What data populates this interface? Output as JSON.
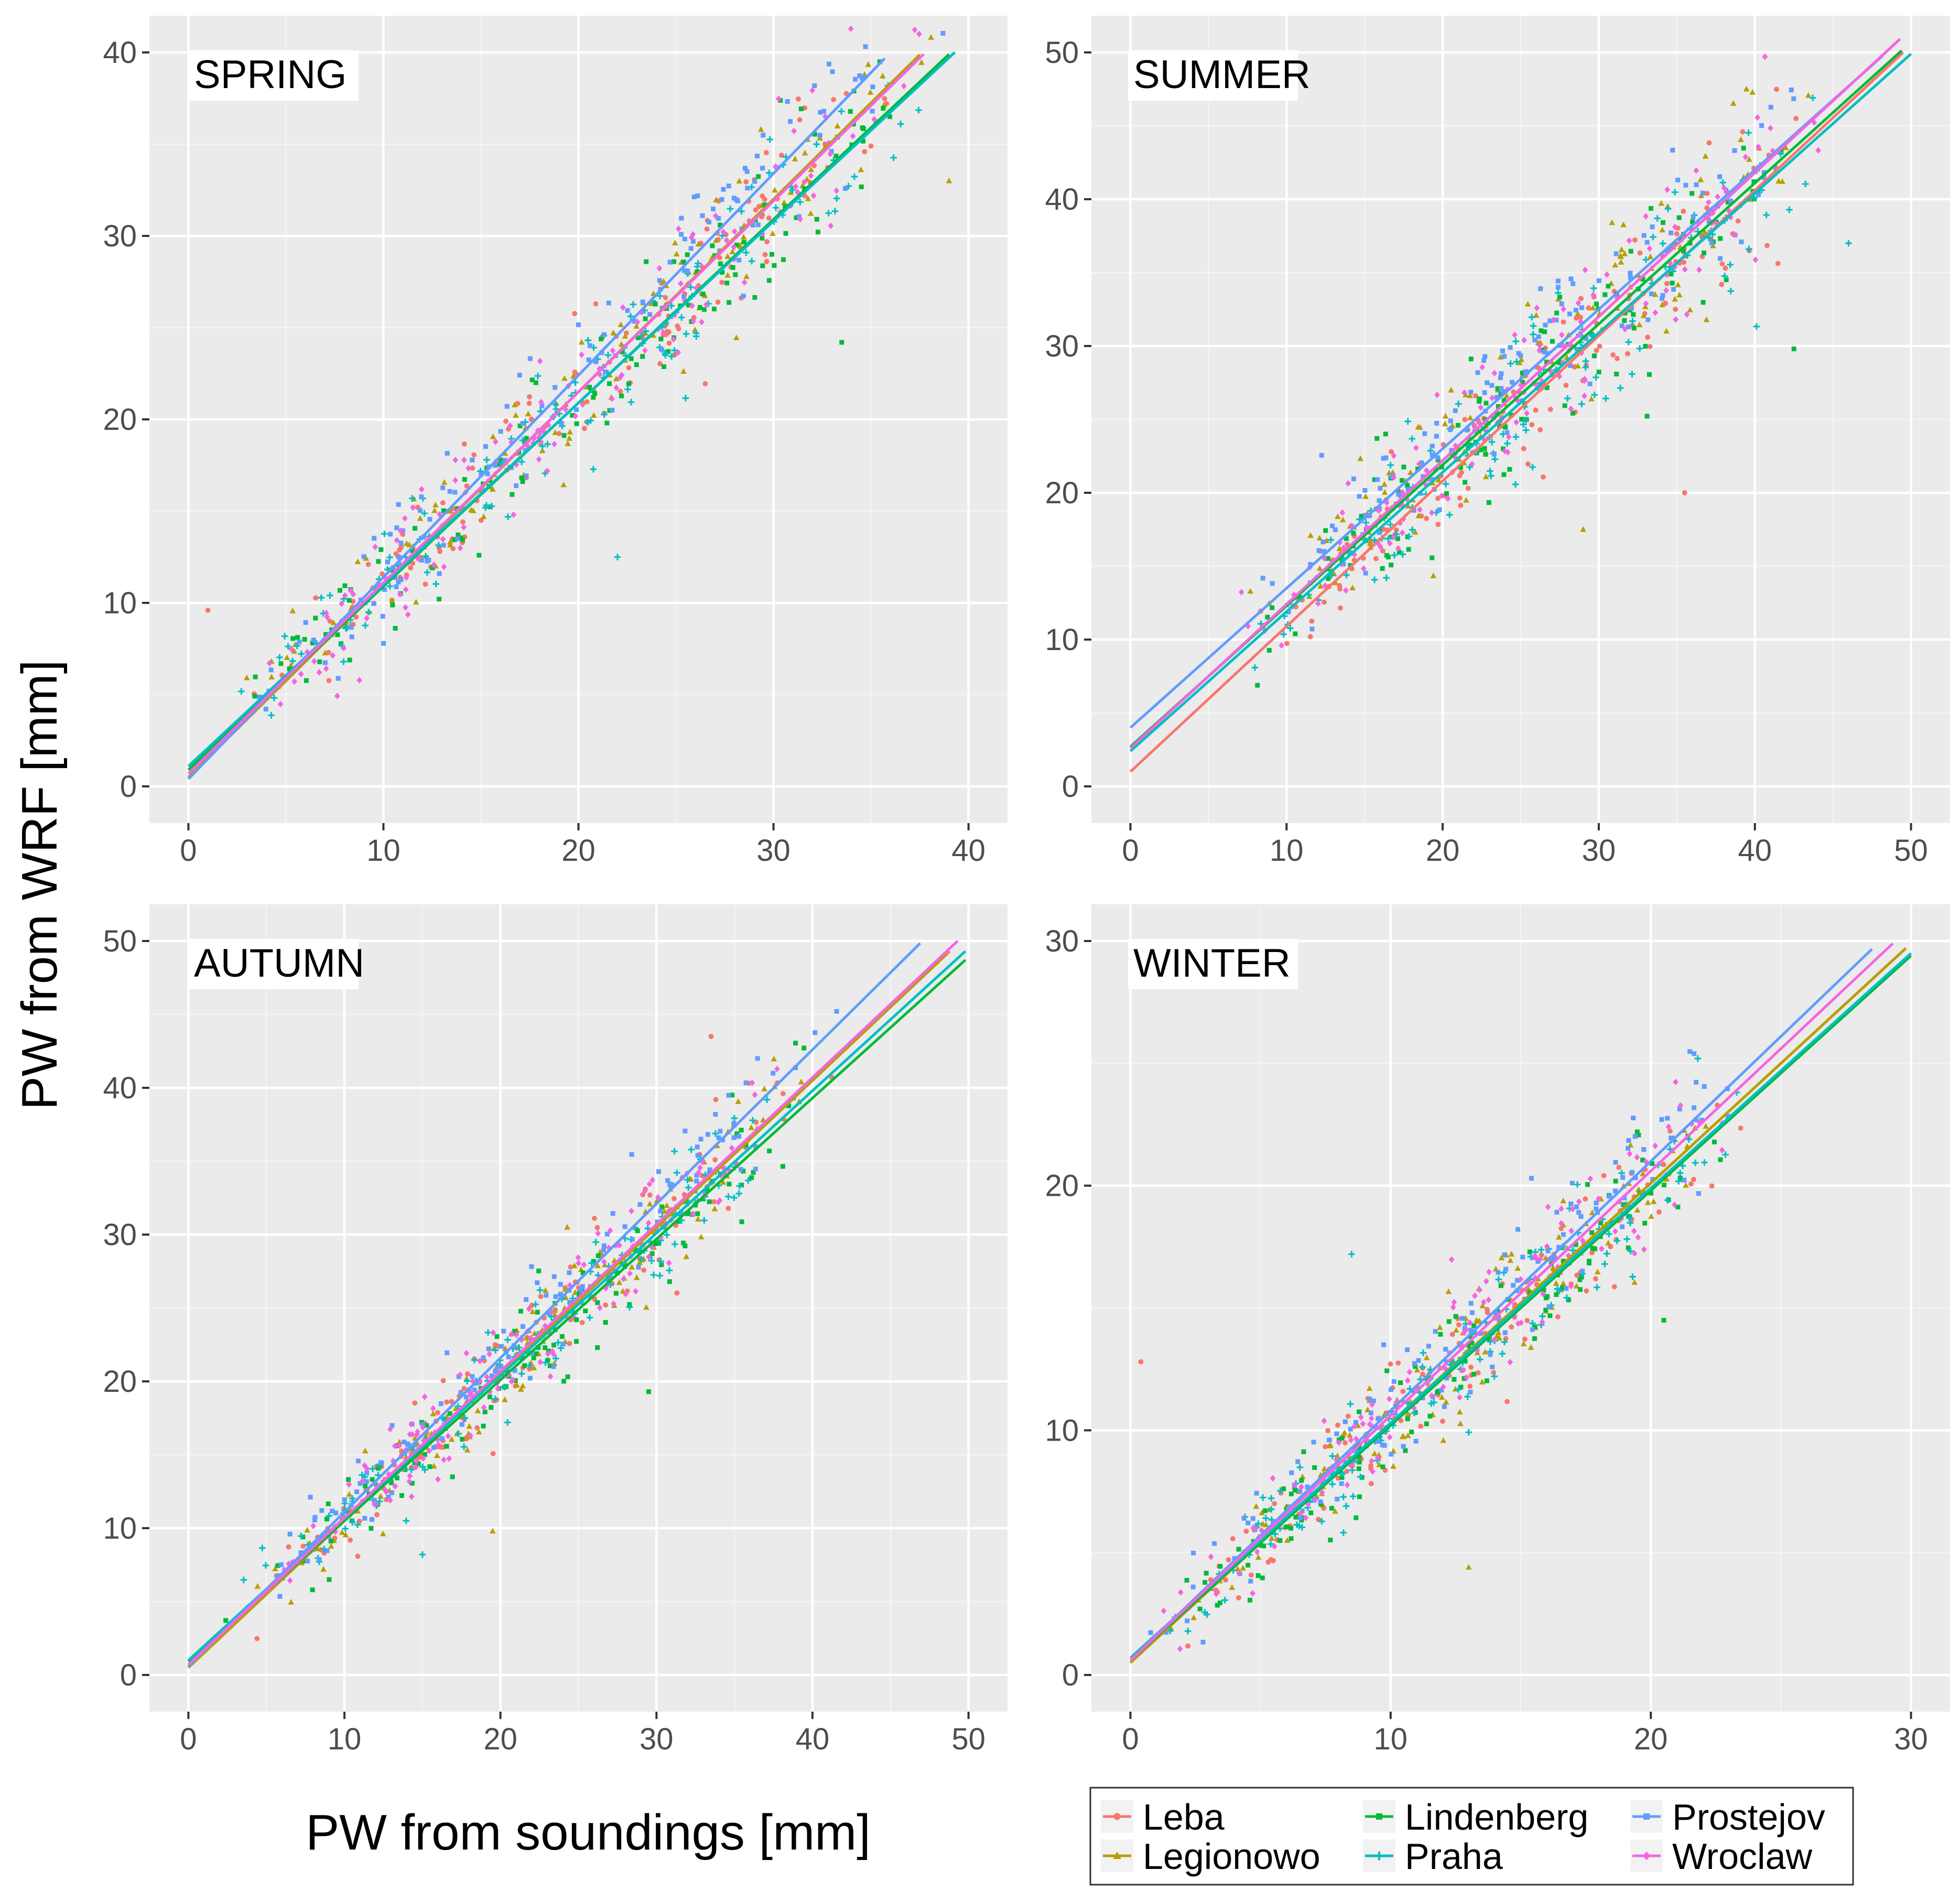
{
  "chart_data": {
    "type": "scatter",
    "xlabel": "PW from soundings [mm]",
    "ylabel": "PW from WRF [mm]",
    "legend": {
      "position": "bottom-right",
      "entries": [
        {
          "name": "Leba",
          "color": "#F8766D",
          "marker": "circle"
        },
        {
          "name": "Legionowo",
          "color": "#B79F00",
          "marker": "triangle"
        },
        {
          "name": "Lindenberg",
          "color": "#00BA38",
          "marker": "square"
        },
        {
          "name": "Praha",
          "color": "#00BFC4",
          "marker": "plus"
        },
        {
          "name": "Prostejov",
          "color": "#619CFF",
          "marker": "square"
        },
        {
          "name": "Wroclaw",
          "color": "#F564E3",
          "marker": "diamond"
        }
      ]
    },
    "panels": [
      {
        "title": "SPRING",
        "xlim": [
          -2,
          42
        ],
        "ylim": [
          -2,
          42
        ],
        "xticks": [
          0,
          10,
          20,
          30,
          40
        ],
        "yticks": [
          0,
          10,
          20,
          30,
          40
        ],
        "tick_labels_x": [
          "0",
          "10",
          "20",
          "30",
          "40"
        ],
        "tick_labels_y": [
          "0",
          "10",
          "20",
          "30",
          "40"
        ],
        "scatter": {
          "x_range": [
            1,
            39
          ],
          "spread": 1.9,
          "n_per_station": 140,
          "outliers": [
            [
              1,
              9.6
            ],
            [
              39,
              33
            ],
            [
              33.5,
              24.2
            ],
            [
              22,
              12.5
            ]
          ]
        },
        "fits": [
          {
            "station": "Leba",
            "intercept": 0.5,
            "slope": 1.05
          },
          {
            "station": "Legionowo",
            "intercept": 0.5,
            "slope": 1.05
          },
          {
            "station": "Lindenberg",
            "intercept": 0.9,
            "slope": 1.0
          },
          {
            "station": "Praha",
            "intercept": 1.1,
            "slope": 0.99
          },
          {
            "station": "Prostejov",
            "intercept": 0.4,
            "slope": 1.1
          },
          {
            "station": "Wroclaw",
            "intercept": 0.7,
            "slope": 1.04
          }
        ],
        "fit_x_max": [
          37.5,
          37.5,
          39,
          39.3,
          35.7,
          37.7
        ]
      },
      {
        "title": "SUMMER",
        "xlim": [
          -2.5,
          52.5
        ],
        "ylim": [
          -2.5,
          52.5
        ],
        "xticks": [
          0,
          10,
          20,
          30,
          40,
          50
        ],
        "yticks": [
          0,
          10,
          20,
          30,
          40,
          50
        ],
        "tick_labels_x": [
          "0",
          "10",
          "20",
          "30",
          "40",
          "50"
        ],
        "tick_labels_y": [
          "0",
          "10",
          "20",
          "30",
          "40",
          "50"
        ],
        "scatter": {
          "x_range": [
            7,
            45
          ],
          "spread": 2.8,
          "n_per_station": 140,
          "outliers": [
            [
              35.5,
              20
            ],
            [
              29,
              17.5
            ],
            [
              42.5,
              29.8
            ],
            [
              46,
              37
            ]
          ]
        },
        "fits": [
          {
            "station": "Leba",
            "intercept": 1.0,
            "slope": 0.99
          },
          {
            "station": "Legionowo",
            "intercept": 2.6,
            "slope": 0.98
          },
          {
            "station": "Lindenberg",
            "intercept": 2.7,
            "slope": 0.96
          },
          {
            "station": "Praha",
            "intercept": 2.4,
            "slope": 0.95
          },
          {
            "station": "Prostejov",
            "intercept": 4.0,
            "slope": 0.95
          },
          {
            "station": "Wroclaw",
            "intercept": 2.6,
            "slope": 0.98
          }
        ],
        "fit_x_max": [
          49.5,
          49.3,
          49.4,
          50,
          48.2,
          49.3
        ]
      },
      {
        "title": "AUTUMN",
        "xlim": [
          -2.5,
          52.5
        ],
        "ylim": [
          -2.5,
          52.5
        ],
        "xticks": [
          0,
          10,
          20,
          30,
          40,
          50
        ],
        "yticks": [
          0,
          10,
          20,
          30,
          40,
          50
        ],
        "tick_labels_x": [
          "0",
          "10",
          "20",
          "30",
          "40",
          "50"
        ],
        "tick_labels_y": [
          "0",
          "10",
          "20",
          "30",
          "40",
          "50"
        ],
        "scatter": {
          "x_range": [
            3,
            41
          ],
          "spread": 1.9,
          "n_per_station": 140,
          "outliers": [
            [
              33.5,
              43.5
            ],
            [
              19.5,
              9.8
            ],
            [
              29.5,
              19.3
            ],
            [
              15,
              8.2
            ]
          ]
        },
        "fits": [
          {
            "station": "Leba",
            "intercept": 0.5,
            "slope": 1.0
          },
          {
            "station": "Legionowo",
            "intercept": 0.5,
            "slope": 1.0
          },
          {
            "station": "Lindenberg",
            "intercept": 0.9,
            "slope": 0.96
          },
          {
            "station": "Praha",
            "intercept": 1.0,
            "slope": 0.97
          },
          {
            "station": "Prostejov",
            "intercept": 0.6,
            "slope": 1.05
          },
          {
            "station": "Wroclaw",
            "intercept": 0.7,
            "slope": 1.0
          }
        ],
        "fit_x_max": [
          48.8,
          48.6,
          49.8,
          49.8,
          46.9,
          49.3
        ]
      },
      {
        "title": "WINTER",
        "xlim": [
          -1.5,
          31.5
        ],
        "ylim": [
          -1.5,
          31.5
        ],
        "xticks": [
          0,
          10,
          20,
          30
        ],
        "yticks": [
          0,
          10,
          20,
          30
        ],
        "tick_labels_x": [
          "0",
          "10",
          "20",
          "30"
        ],
        "tick_labels_y": [
          "0",
          "10",
          "20",
          "30"
        ],
        "scatter": {
          "x_range": [
            1,
            24
          ],
          "spread": 1.3,
          "n_per_station": 140,
          "outliers": [
            [
              0.4,
              12.8
            ],
            [
              13,
              4.4
            ],
            [
              20.5,
              14.5
            ],
            [
              8.5,
              17.2
            ]
          ]
        },
        "fits": [
          {
            "station": "Leba",
            "intercept": 0.5,
            "slope": 0.98
          },
          {
            "station": "Legionowo",
            "intercept": 0.5,
            "slope": 0.98
          },
          {
            "station": "Lindenberg",
            "intercept": 0.6,
            "slope": 0.96
          },
          {
            "station": "Praha",
            "intercept": 0.7,
            "slope": 0.96
          },
          {
            "station": "Prostejov",
            "intercept": 0.6,
            "slope": 1.02
          },
          {
            "station": "Wroclaw",
            "intercept": 0.6,
            "slope": 1.0
          }
        ],
        "fit_x_max": [
          29.8,
          29.8,
          30,
          30,
          28.5,
          29.3
        ]
      }
    ]
  }
}
